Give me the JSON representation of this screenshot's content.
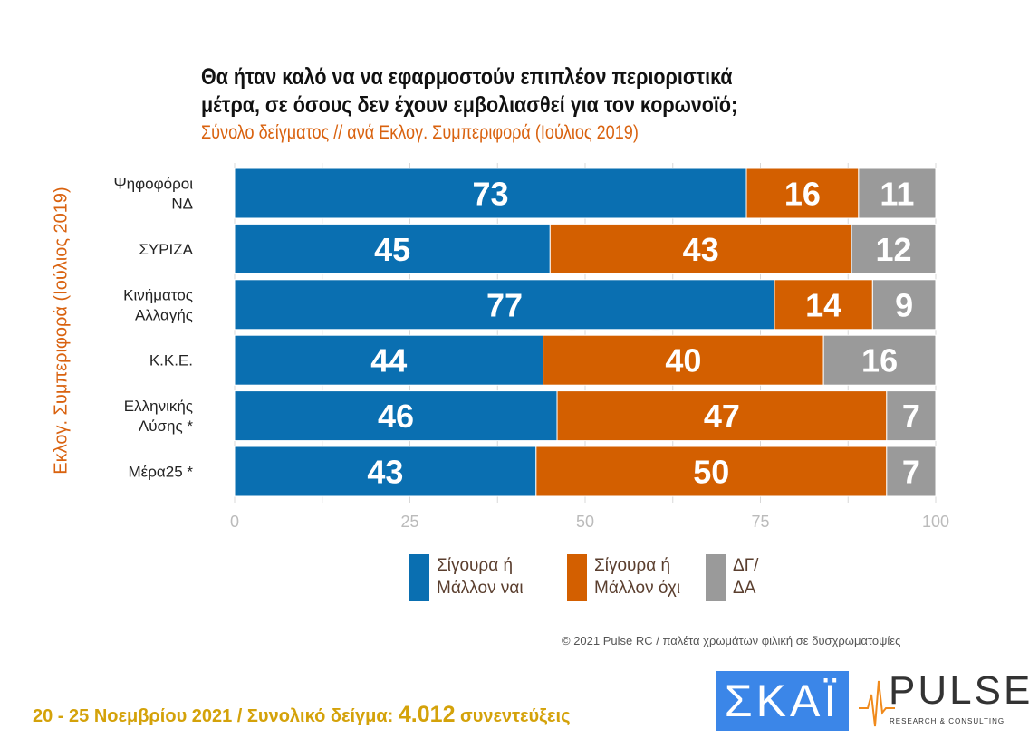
{
  "title_lines": [
    "Θα ήταν καλό να να εφαρμοστούν επιπλέον περιοριστικά",
    "μέτρα, σε όσους δεν έχουν εμβολιασθεί για τον κορωνοϊό;"
  ],
  "subtitle": "Σύνολο δείγματος // ανά Εκλογ. Συμπεριφορά (Ιούλιος 2019)",
  "chart_data": {
    "type": "bar",
    "orientation": "horizontal",
    "stacked": true,
    "ylabel": "Εκλογ. Συμπεριφορά (Ιούλιος 2019)",
    "categories": [
      [
        "Ψηφοφόροι",
        "ΝΔ"
      ],
      [
        "ΣΥΡΙΖΑ"
      ],
      [
        "Κινήματος",
        "Αλλαγής"
      ],
      [
        "Κ.Κ.Ε."
      ],
      [
        "Ελληνικής",
        "Λύσης *"
      ],
      [
        "Μέρα25 *"
      ]
    ],
    "series": [
      {
        "name": "Σίγουρα ή Μάλλον ναι",
        "legend_lines": [
          "Σίγουρα ή",
          "Μάλλον ναι"
        ],
        "color": "#0a6fb1",
        "values": [
          73,
          45,
          77,
          44,
          46,
          43
        ]
      },
      {
        "name": "Σίγουρα ή Μάλλον όχι",
        "legend_lines": [
          "Σίγουρα ή",
          "Μάλλον όχι"
        ],
        "color": "#d35f00",
        "values": [
          16,
          43,
          14,
          40,
          47,
          50
        ]
      },
      {
        "name": "ΔΓ/ ΔΑ",
        "legend_lines": [
          "ΔΓ/",
          "ΔΑ"
        ],
        "color": "#9a9a9a",
        "values": [
          11,
          12,
          9,
          16,
          7,
          7
        ]
      }
    ],
    "xlim": [
      0,
      100
    ],
    "xticks": [
      0,
      25,
      50,
      75,
      100
    ],
    "grid": true,
    "legend_position": "bottom"
  },
  "watermark": "PULSE",
  "copyright": "© 2021 Pulse RC  /  παλέτα χρωμάτων φιλική σε δυσχρωματοψίες",
  "footer": {
    "dates": "20 - 25  Νοεμβρίου 2021  /  Συνολικό δείγμα:",
    "sample": "4.012",
    "suffix": "συνεντεύξεις"
  },
  "logos": {
    "skai": "ΣΚΑΪ",
    "pulse": "PULSE",
    "pulse_sub": "RESEARCH & CONSULTING"
  }
}
